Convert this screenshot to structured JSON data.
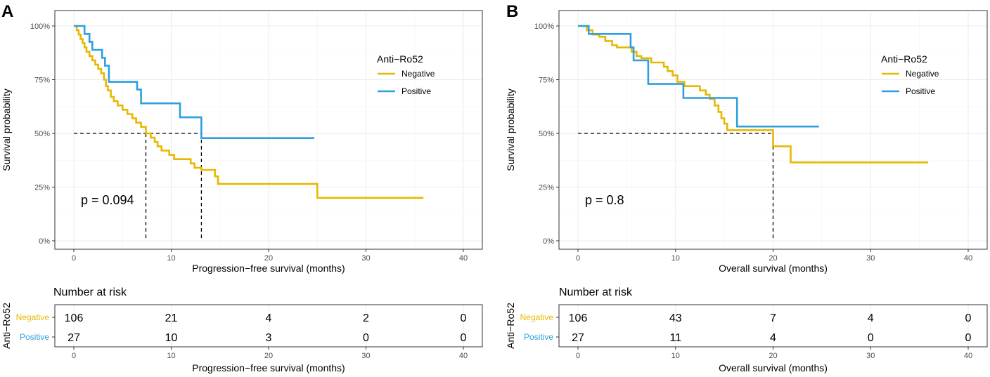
{
  "chart_data": [
    {
      "panel_label": "A",
      "type": "line",
      "subtype": "kaplan-meier",
      "xlabel": "Progression−free survival (months)",
      "ylabel": "Survival probability",
      "xlim": [
        0,
        40
      ],
      "ylim": [
        0,
        1
      ],
      "xticks": [
        "0",
        "10",
        "20",
        "30",
        "40"
      ],
      "yticks": [
        "0%",
        "25%",
        "50%",
        "75%",
        "100%"
      ],
      "p_value": "p = 0.094",
      "legend": {
        "title": "Anti−Ro52",
        "labels": [
          "Negative",
          "Positive"
        ]
      },
      "medians": [
        7.4,
        13.1
      ],
      "series": [
        {
          "name": "Negative",
          "color": "#E7B800",
          "steps": [
            [
              0,
              1.0
            ],
            [
              0.3,
              0.98
            ],
            [
              0.5,
              0.96
            ],
            [
              0.7,
              0.94
            ],
            [
              0.9,
              0.92
            ],
            [
              1.1,
              0.9
            ],
            [
              1.3,
              0.88
            ],
            [
              1.6,
              0.86
            ],
            [
              1.9,
              0.84
            ],
            [
              2.2,
              0.82
            ],
            [
              2.5,
              0.8
            ],
            [
              2.8,
              0.78
            ],
            [
              3.1,
              0.75
            ],
            [
              3.3,
              0.72
            ],
            [
              3.5,
              0.7
            ],
            [
              3.8,
              0.67
            ],
            [
              4.1,
              0.65
            ],
            [
              4.5,
              0.63
            ],
            [
              5.0,
              0.61
            ],
            [
              5.5,
              0.59
            ],
            [
              6.0,
              0.57
            ],
            [
              6.4,
              0.55
            ],
            [
              6.9,
              0.53
            ],
            [
              7.4,
              0.5
            ],
            [
              7.9,
              0.48
            ],
            [
              8.3,
              0.46
            ],
            [
              8.6,
              0.44
            ],
            [
              9.0,
              0.42
            ],
            [
              9.8,
              0.4
            ],
            [
              10.3,
              0.38
            ],
            [
              12.0,
              0.36
            ],
            [
              12.4,
              0.34
            ],
            [
              13.1,
              0.33
            ],
            [
              14.5,
              0.3
            ],
            [
              14.8,
              0.265
            ],
            [
              25.0,
              0.2
            ],
            [
              35.9,
              0.2
            ]
          ]
        },
        {
          "name": "Positive",
          "color": "#2E9FDF",
          "steps": [
            [
              0,
              1.0
            ],
            [
              1.1,
              0.963
            ],
            [
              1.6,
              0.926
            ],
            [
              1.9,
              0.889
            ],
            [
              2.9,
              0.852
            ],
            [
              3.2,
              0.815
            ],
            [
              3.6,
              0.74
            ],
            [
              6.5,
              0.704
            ],
            [
              6.9,
              0.64
            ],
            [
              10.9,
              0.575
            ],
            [
              13.1,
              0.478
            ],
            [
              24.7,
              0.478
            ]
          ]
        }
      ],
      "risk_table": {
        "title": "Number at risk",
        "strata_label": "Anti−Ro52",
        "times": [
          0,
          10,
          20,
          30,
          40
        ],
        "rows": [
          {
            "name": "Negative",
            "color": "#E7B800",
            "counts": [
              "106",
              "21",
              "4",
              "2",
              "0"
            ]
          },
          {
            "name": "Positive",
            "color": "#2E9FDF",
            "counts": [
              "27",
              "10",
              "3",
              "0",
              "0"
            ]
          }
        ],
        "xlabel": "Progression−free survival (months)"
      }
    },
    {
      "panel_label": "B",
      "type": "line",
      "subtype": "kaplan-meier",
      "xlabel": "Overall survival (months)",
      "ylabel": "Survival probability",
      "xlim": [
        0,
        40
      ],
      "ylim": [
        0,
        1
      ],
      "xticks": [
        "0",
        "10",
        "20",
        "30",
        "40"
      ],
      "yticks": [
        "0%",
        "25%",
        "50%",
        "75%",
        "100%"
      ],
      "p_value": "p = 0.8",
      "legend": {
        "title": "Anti−Ro52",
        "labels": [
          "Negative",
          "Positive"
        ]
      },
      "medians": [
        20.0
      ],
      "series": [
        {
          "name": "Negative",
          "color": "#E7B800",
          "steps": [
            [
              0,
              1.0
            ],
            [
              0.9,
              0.98
            ],
            [
              1.5,
              0.96
            ],
            [
              2.2,
              0.95
            ],
            [
              2.8,
              0.93
            ],
            [
              3.5,
              0.91
            ],
            [
              4.0,
              0.9
            ],
            [
              5.5,
              0.88
            ],
            [
              6.0,
              0.86
            ],
            [
              6.5,
              0.85
            ],
            [
              7.5,
              0.83
            ],
            [
              8.8,
              0.81
            ],
            [
              9.2,
              0.79
            ],
            [
              9.7,
              0.77
            ],
            [
              10.2,
              0.74
            ],
            [
              10.9,
              0.72
            ],
            [
              12.5,
              0.7
            ],
            [
              13.1,
              0.68
            ],
            [
              13.5,
              0.66
            ],
            [
              14.0,
              0.63
            ],
            [
              14.4,
              0.6
            ],
            [
              14.7,
              0.57
            ],
            [
              15.0,
              0.545
            ],
            [
              15.3,
              0.515
            ],
            [
              20.0,
              0.44
            ],
            [
              21.8,
              0.365
            ],
            [
              35.9,
              0.365
            ]
          ]
        },
        {
          "name": "Positive",
          "color": "#2E9FDF",
          "steps": [
            [
              0,
              1.0
            ],
            [
              1.1,
              0.963
            ],
            [
              5.4,
              0.9
            ],
            [
              5.7,
              0.84
            ],
            [
              7.2,
              0.73
            ],
            [
              10.8,
              0.665
            ],
            [
              16.3,
              0.532
            ],
            [
              24.7,
              0.532
            ]
          ]
        }
      ],
      "risk_table": {
        "title": "Number at risk",
        "strata_label": "Anti−Ro52",
        "times": [
          0,
          10,
          20,
          30,
          40
        ],
        "rows": [
          {
            "name": "Negative",
            "color": "#E7B800",
            "counts": [
              "106",
              "43",
              "7",
              "4",
              "0"
            ]
          },
          {
            "name": "Positive",
            "color": "#2E9FDF",
            "counts": [
              "27",
              "11",
              "4",
              "0",
              "0"
            ]
          }
        ],
        "xlabel": "Overall survival (months)"
      }
    }
  ]
}
